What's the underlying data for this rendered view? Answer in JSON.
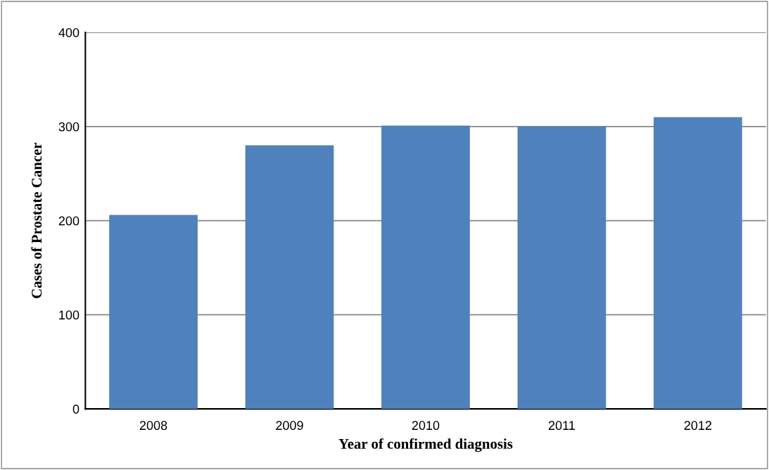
{
  "chart_data": {
    "type": "bar",
    "xlabel": "Year of confirmed diagnosis",
    "ylabel": "Cases of Prostate Cancer",
    "categories": [
      "2008",
      "2009",
      "2010",
      "2011",
      "2012"
    ],
    "values": [
      206,
      280,
      301,
      300,
      310
    ],
    "color": "#4f81bd",
    "ylim": [
      0,
      400
    ],
    "yticks": [
      0,
      100,
      200,
      300,
      400
    ],
    "grid": "y"
  }
}
